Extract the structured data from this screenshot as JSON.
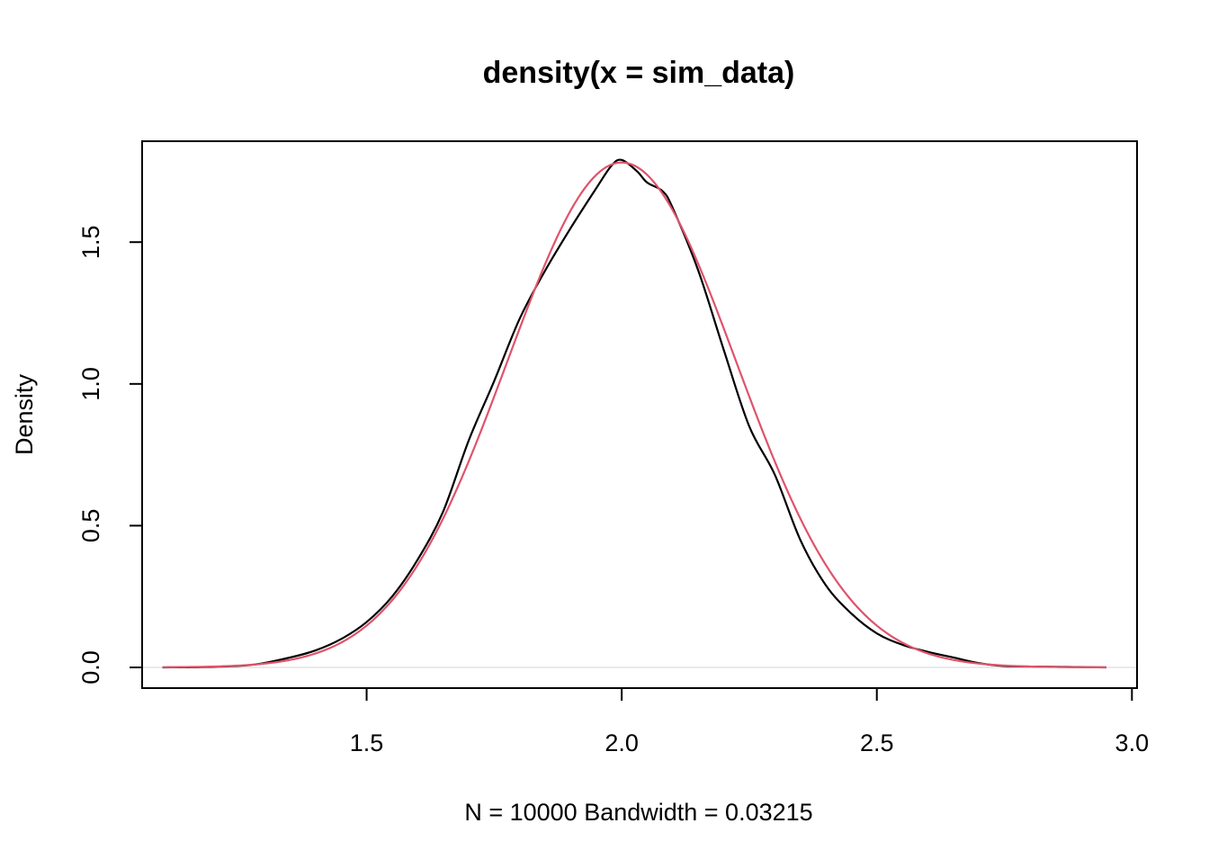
{
  "chart_data": {
    "type": "line",
    "title": "density(x = sim_data)",
    "xlabel": "N = 10000   Bandwidth = 0.03215",
    "ylabel": "Density",
    "xlim": [
      1.06,
      3.01
    ],
    "ylim": [
      -0.073,
      1.856
    ],
    "x_ticks": [
      "1.5",
      "2.0",
      "2.5",
      "3.0"
    ],
    "y_ticks": [
      "0.0",
      "0.5",
      "1.0",
      "1.5"
    ],
    "grid": false,
    "legend": "none",
    "baseline": {
      "y": 0,
      "color": "#d3d3d3"
    },
    "colors": {
      "density": "#000000",
      "normal_curve": "#df536b"
    },
    "series": [
      {
        "role": "density",
        "x": [
          1.1,
          1.2,
          1.28,
          1.35,
          1.4,
          1.45,
          1.5,
          1.55,
          1.6,
          1.65,
          1.7,
          1.75,
          1.8,
          1.85,
          1.9,
          1.95,
          1.98,
          2.0,
          2.03,
          2.05,
          2.08,
          2.1,
          2.15,
          2.2,
          2.25,
          2.3,
          2.35,
          2.4,
          2.45,
          2.5,
          2.55,
          2.6,
          2.65,
          2.7,
          2.75,
          2.8,
          2.85,
          2.9,
          2.95
        ],
        "y": [
          0.0,
          0.002,
          0.01,
          0.035,
          0.06,
          0.1,
          0.16,
          0.25,
          0.38,
          0.55,
          0.8,
          1.01,
          1.23,
          1.4,
          1.55,
          1.69,
          1.77,
          1.79,
          1.75,
          1.71,
          1.68,
          1.62,
          1.4,
          1.12,
          0.85,
          0.68,
          0.45,
          0.29,
          0.19,
          0.12,
          0.08,
          0.055,
          0.035,
          0.015,
          0.005,
          0.003,
          0.002,
          0.001,
          0.0
        ]
      },
      {
        "role": "normal_curve",
        "mean": 2.0,
        "sd": 0.224,
        "x_range": [
          1.1,
          2.95
        ]
      }
    ]
  }
}
